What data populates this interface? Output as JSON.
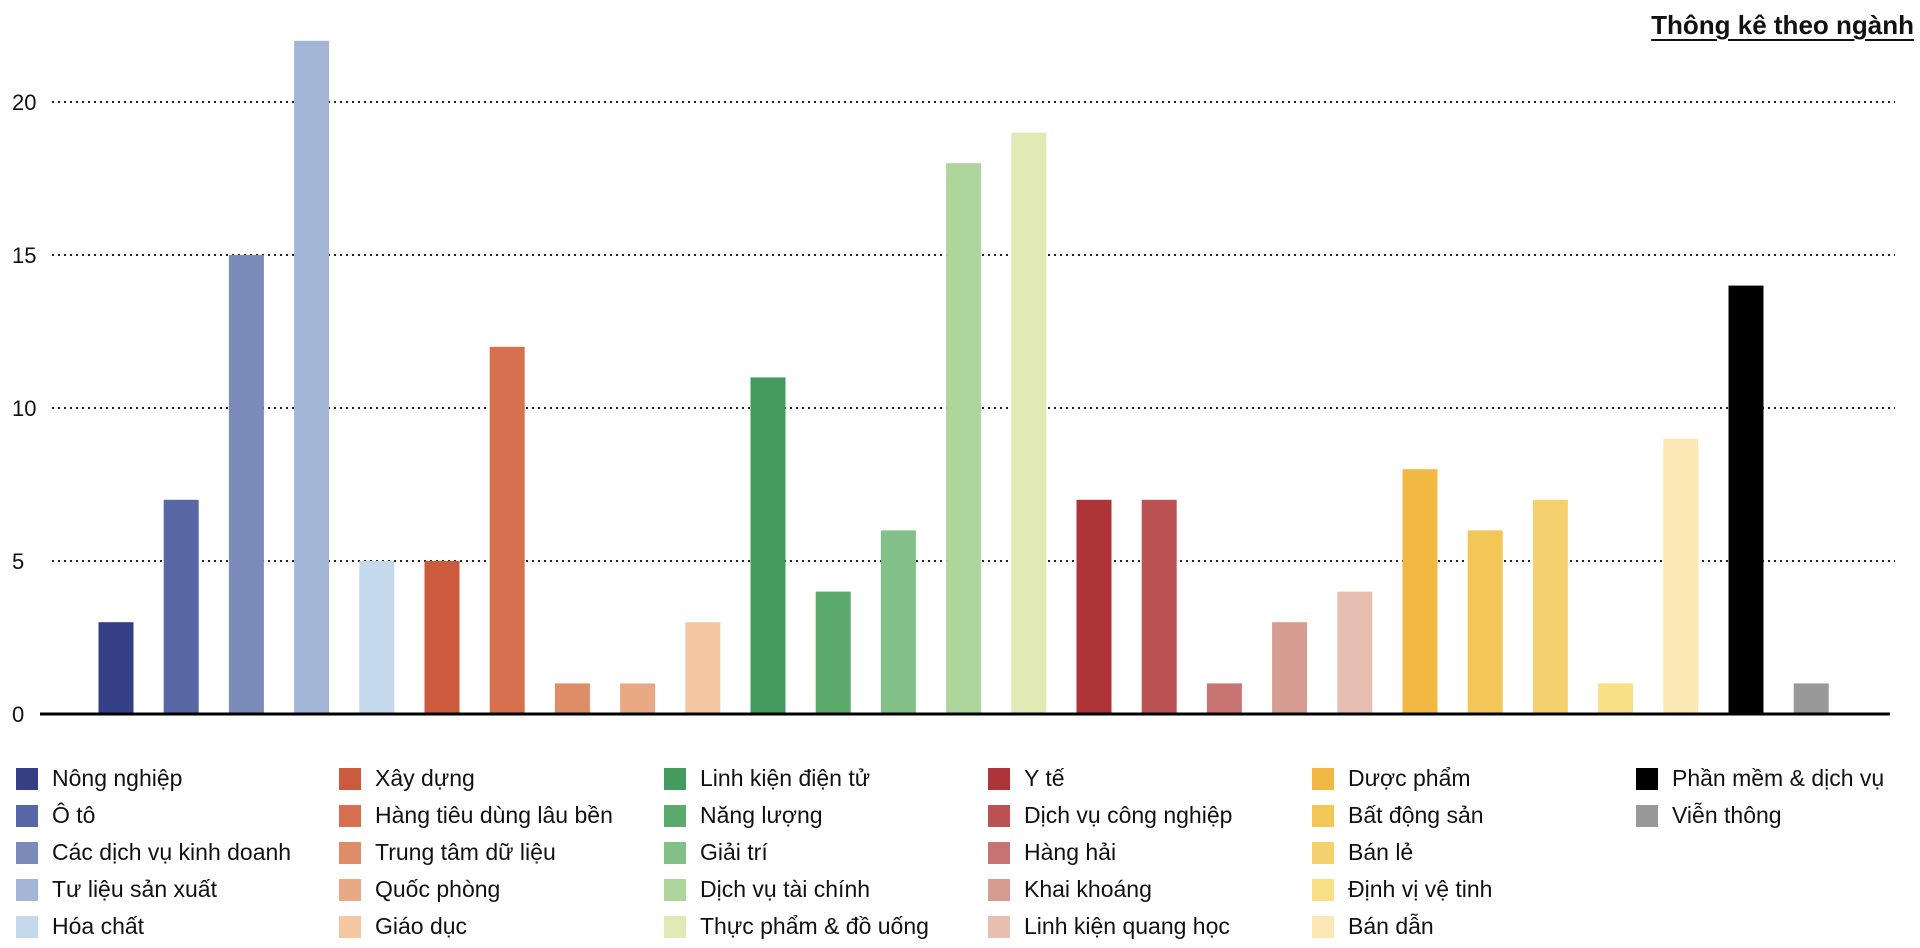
{
  "chart_data": {
    "type": "bar",
    "title": "Thông kê theo ngành",
    "xlabel": "",
    "ylabel": "",
    "ylim": [
      0,
      22
    ],
    "yticks": [
      0,
      5,
      10,
      15,
      20
    ],
    "grid": "dotted horizontal",
    "legend": "bottom",
    "categories": [
      "Nông nghiệp",
      "Ô tô",
      "Các dịch vụ kinh doanh",
      "Tư liệu sản xuất",
      "Hóa chất",
      "Xây dựng",
      "Hàng tiêu dùng lâu bền",
      "Trung tâm dữ liệu",
      "Quốc phòng",
      "Giáo dục",
      "Linh kiện điện tử",
      "Năng lượng",
      "Giải trí",
      "Dịch vụ tài chính",
      "Thực phẩm & đồ uống",
      "Y tế",
      "Dịch vụ công nghiệp",
      "Hàng hải",
      "Khai khoáng",
      "Linh kiện quang học",
      "Dược phẩm",
      "Bất động sản",
      "Bán lẻ",
      "Định vị vệ tinh",
      "Bán dẫn",
      "Phần mềm & dịch vụ",
      "Viễn thông"
    ],
    "values": [
      3,
      7,
      15,
      22,
      5,
      5,
      12,
      1,
      1,
      3,
      11,
      4,
      6,
      18,
      19,
      7,
      7,
      1,
      3,
      4,
      8,
      6,
      7,
      1,
      9,
      14,
      1
    ],
    "colors": [
      "#343f86",
      "#5868a6",
      "#7b8cbb",
      "#a3b6d7",
      "#c4daec",
      "#cc5a3c",
      "#d6704f",
      "#de8d69",
      "#e9a985",
      "#f5c7a0",
      "#459a5e",
      "#5caa6c",
      "#83c087",
      "#aed59b",
      "#e1e9b5",
      "#ad3538",
      "#bb5354",
      "#c77472",
      "#d69c92",
      "#e7bfb0",
      "#f1b943",
      "#f3c658",
      "#f4d06e",
      "#f9df86",
      "#fbe8b4",
      "#000000",
      "#999999"
    ],
    "legend_columns": [
      [
        0,
        1,
        2,
        3,
        4
      ],
      [
        5,
        6,
        7,
        8,
        9
      ],
      [
        10,
        11,
        12,
        13,
        14
      ],
      [
        15,
        16,
        17,
        18,
        19
      ],
      [
        20,
        21,
        22,
        23,
        24
      ],
      [
        25,
        26
      ]
    ]
  }
}
